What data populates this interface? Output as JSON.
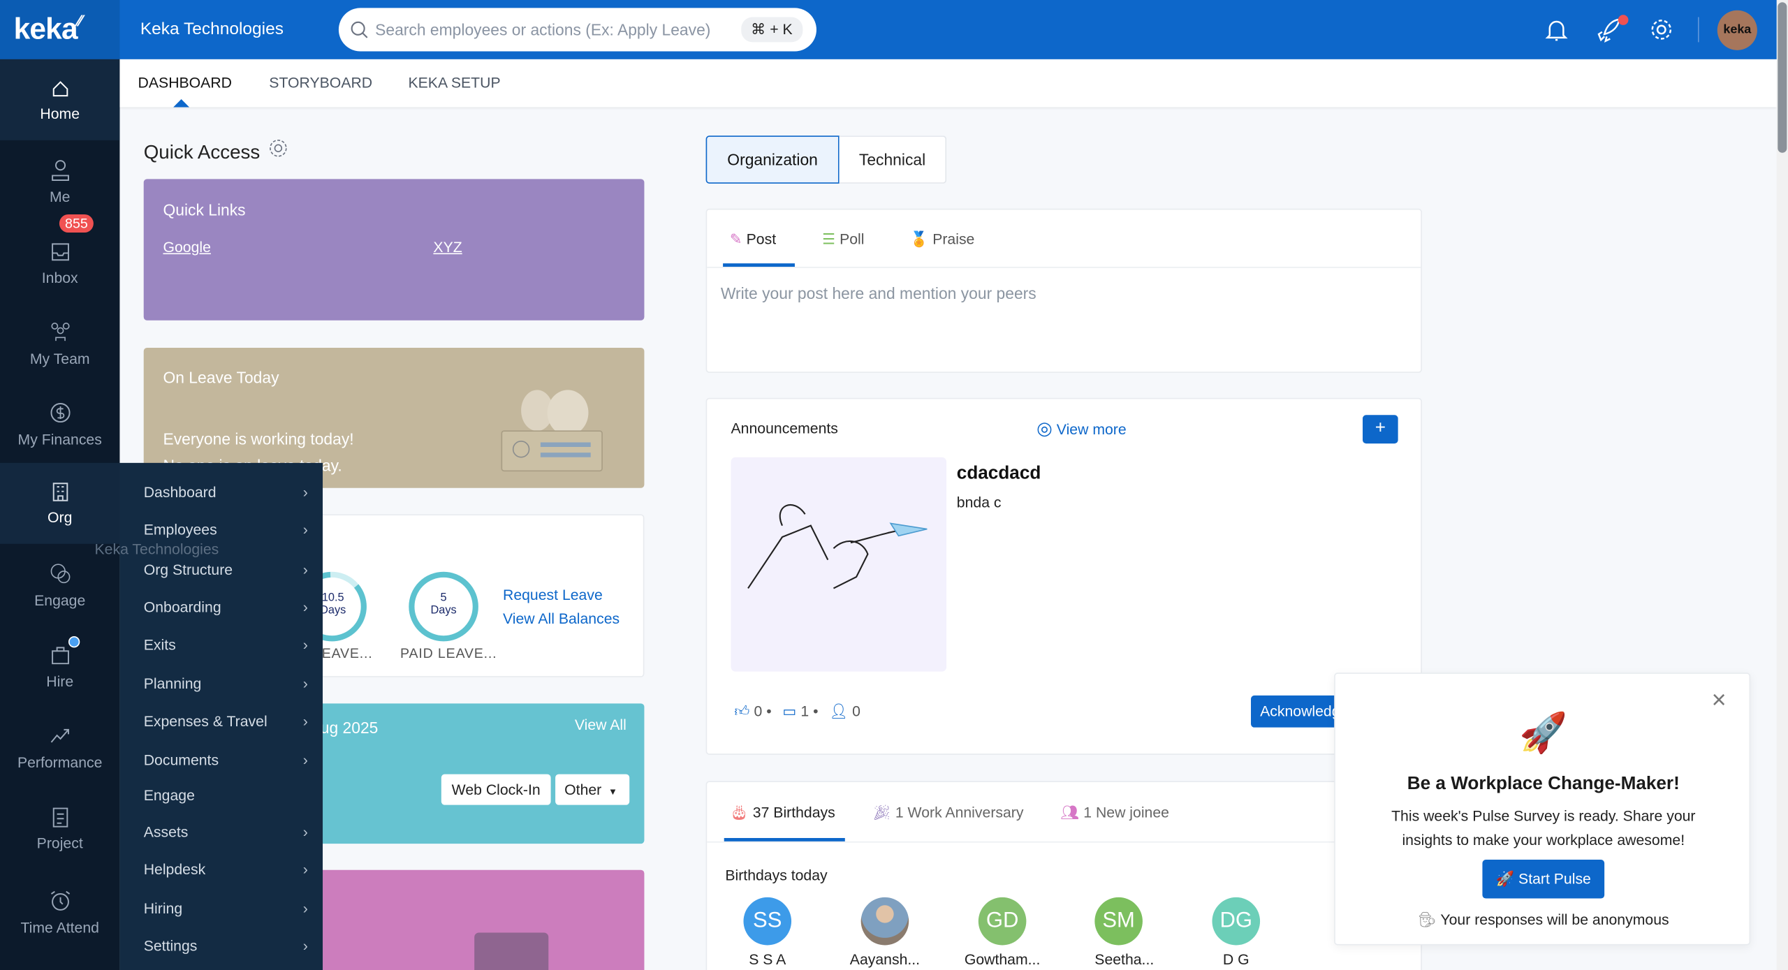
{
  "topbar": {
    "logo": "keka",
    "company": "Keka Technologies",
    "search_placeholder": "Search employees or actions (Ex: Apply Leave)",
    "shortcut": "⌘ + K",
    "avatar_text": "keka",
    "brand_color": "#0d67ca"
  },
  "sidebar": {
    "items": [
      {
        "label": "Home",
        "icon": "home-icon"
      },
      {
        "label": "Me",
        "icon": "user-icon"
      },
      {
        "label": "Inbox",
        "icon": "inbox-icon",
        "badge": "855"
      },
      {
        "label": "My Team",
        "icon": "team-icon"
      },
      {
        "label": "My Finances",
        "icon": "dollar-icon"
      },
      {
        "label": "Org",
        "icon": "building-icon"
      },
      {
        "label": "Engage",
        "icon": "chat-icon"
      },
      {
        "label": "Hire",
        "icon": "briefcase-icon"
      },
      {
        "label": "Performance",
        "icon": "trend-icon"
      },
      {
        "label": "Project",
        "icon": "clipboard-icon"
      },
      {
        "label": "Time Attend",
        "icon": "alarm-icon"
      }
    ]
  },
  "subnav": {
    "tabs": [
      "DASHBOARD",
      "STORYBOARD",
      "KEKA SETUP"
    ]
  },
  "org_menu": {
    "items": [
      "Dashboard",
      "Employees",
      "Org Structure",
      "Onboarding",
      "Exits",
      "Planning",
      "Expenses & Travel",
      "Documents",
      "Engage",
      "Assets",
      "Helpdesk",
      "Hiring",
      "Settings"
    ],
    "tooltip": "Keka Technologies"
  },
  "quick_access": {
    "title": "Quick Access",
    "quick_links": {
      "title": "Quick Links",
      "links": [
        "Google",
        "XYZ"
      ]
    },
    "on_leave": {
      "title": "On Leave Today",
      "line1": "Everyone is working today!",
      "line2": "No one is on leave today."
    },
    "leave": {
      "balances": [
        {
          "value": "10.5",
          "unit": "Days",
          "label": "LEAVE..."
        },
        {
          "value": "5",
          "unit": "Days",
          "label": "PAID LEAVE..."
        }
      ],
      "request": "Request Leave",
      "view_all": "View All Balances"
    },
    "attendance": {
      "date": "ug 2025",
      "view_all": "View All",
      "clock_in": "Web Clock-In",
      "other": "Other"
    }
  },
  "feed": {
    "tabs": [
      "Organization",
      "Technical"
    ],
    "post": {
      "tabs": [
        "Post",
        "Poll",
        "Praise"
      ],
      "placeholder": "Write your post here and mention your peers"
    },
    "announcements": {
      "title": "Announcements",
      "view_more": "View more",
      "add": "+",
      "post_title": "cdacdacd",
      "post_body": "bnda c",
      "likes": "0",
      "comments": "1",
      "acks": "0",
      "acknowledge": "Acknowledge"
    },
    "celebrations": {
      "tabs": [
        "37 Birthdays",
        "1 Work Anniversary",
        "1 New joinee"
      ],
      "subtitle": "Birthdays today",
      "people": [
        {
          "initials": "SS",
          "name": "S S A",
          "color": "#3d9be9"
        },
        {
          "initials": "",
          "name": "Aayansh...",
          "color": "#8a8f96"
        },
        {
          "initials": "GD",
          "name": "Gowtham...",
          "color": "#84c06e"
        },
        {
          "initials": "SM",
          "name": "Seetha...",
          "color": "#7cbf5e"
        },
        {
          "initials": "DG",
          "name": "D G",
          "color": "#6ccfb8"
        }
      ]
    }
  },
  "pulse": {
    "title": "Be a Workplace Change-Maker!",
    "body": "This week's Pulse Survey is ready. Share your insights to make your workplace awesome!",
    "button": "Start Pulse",
    "note": "Your responses will be anonymous"
  }
}
